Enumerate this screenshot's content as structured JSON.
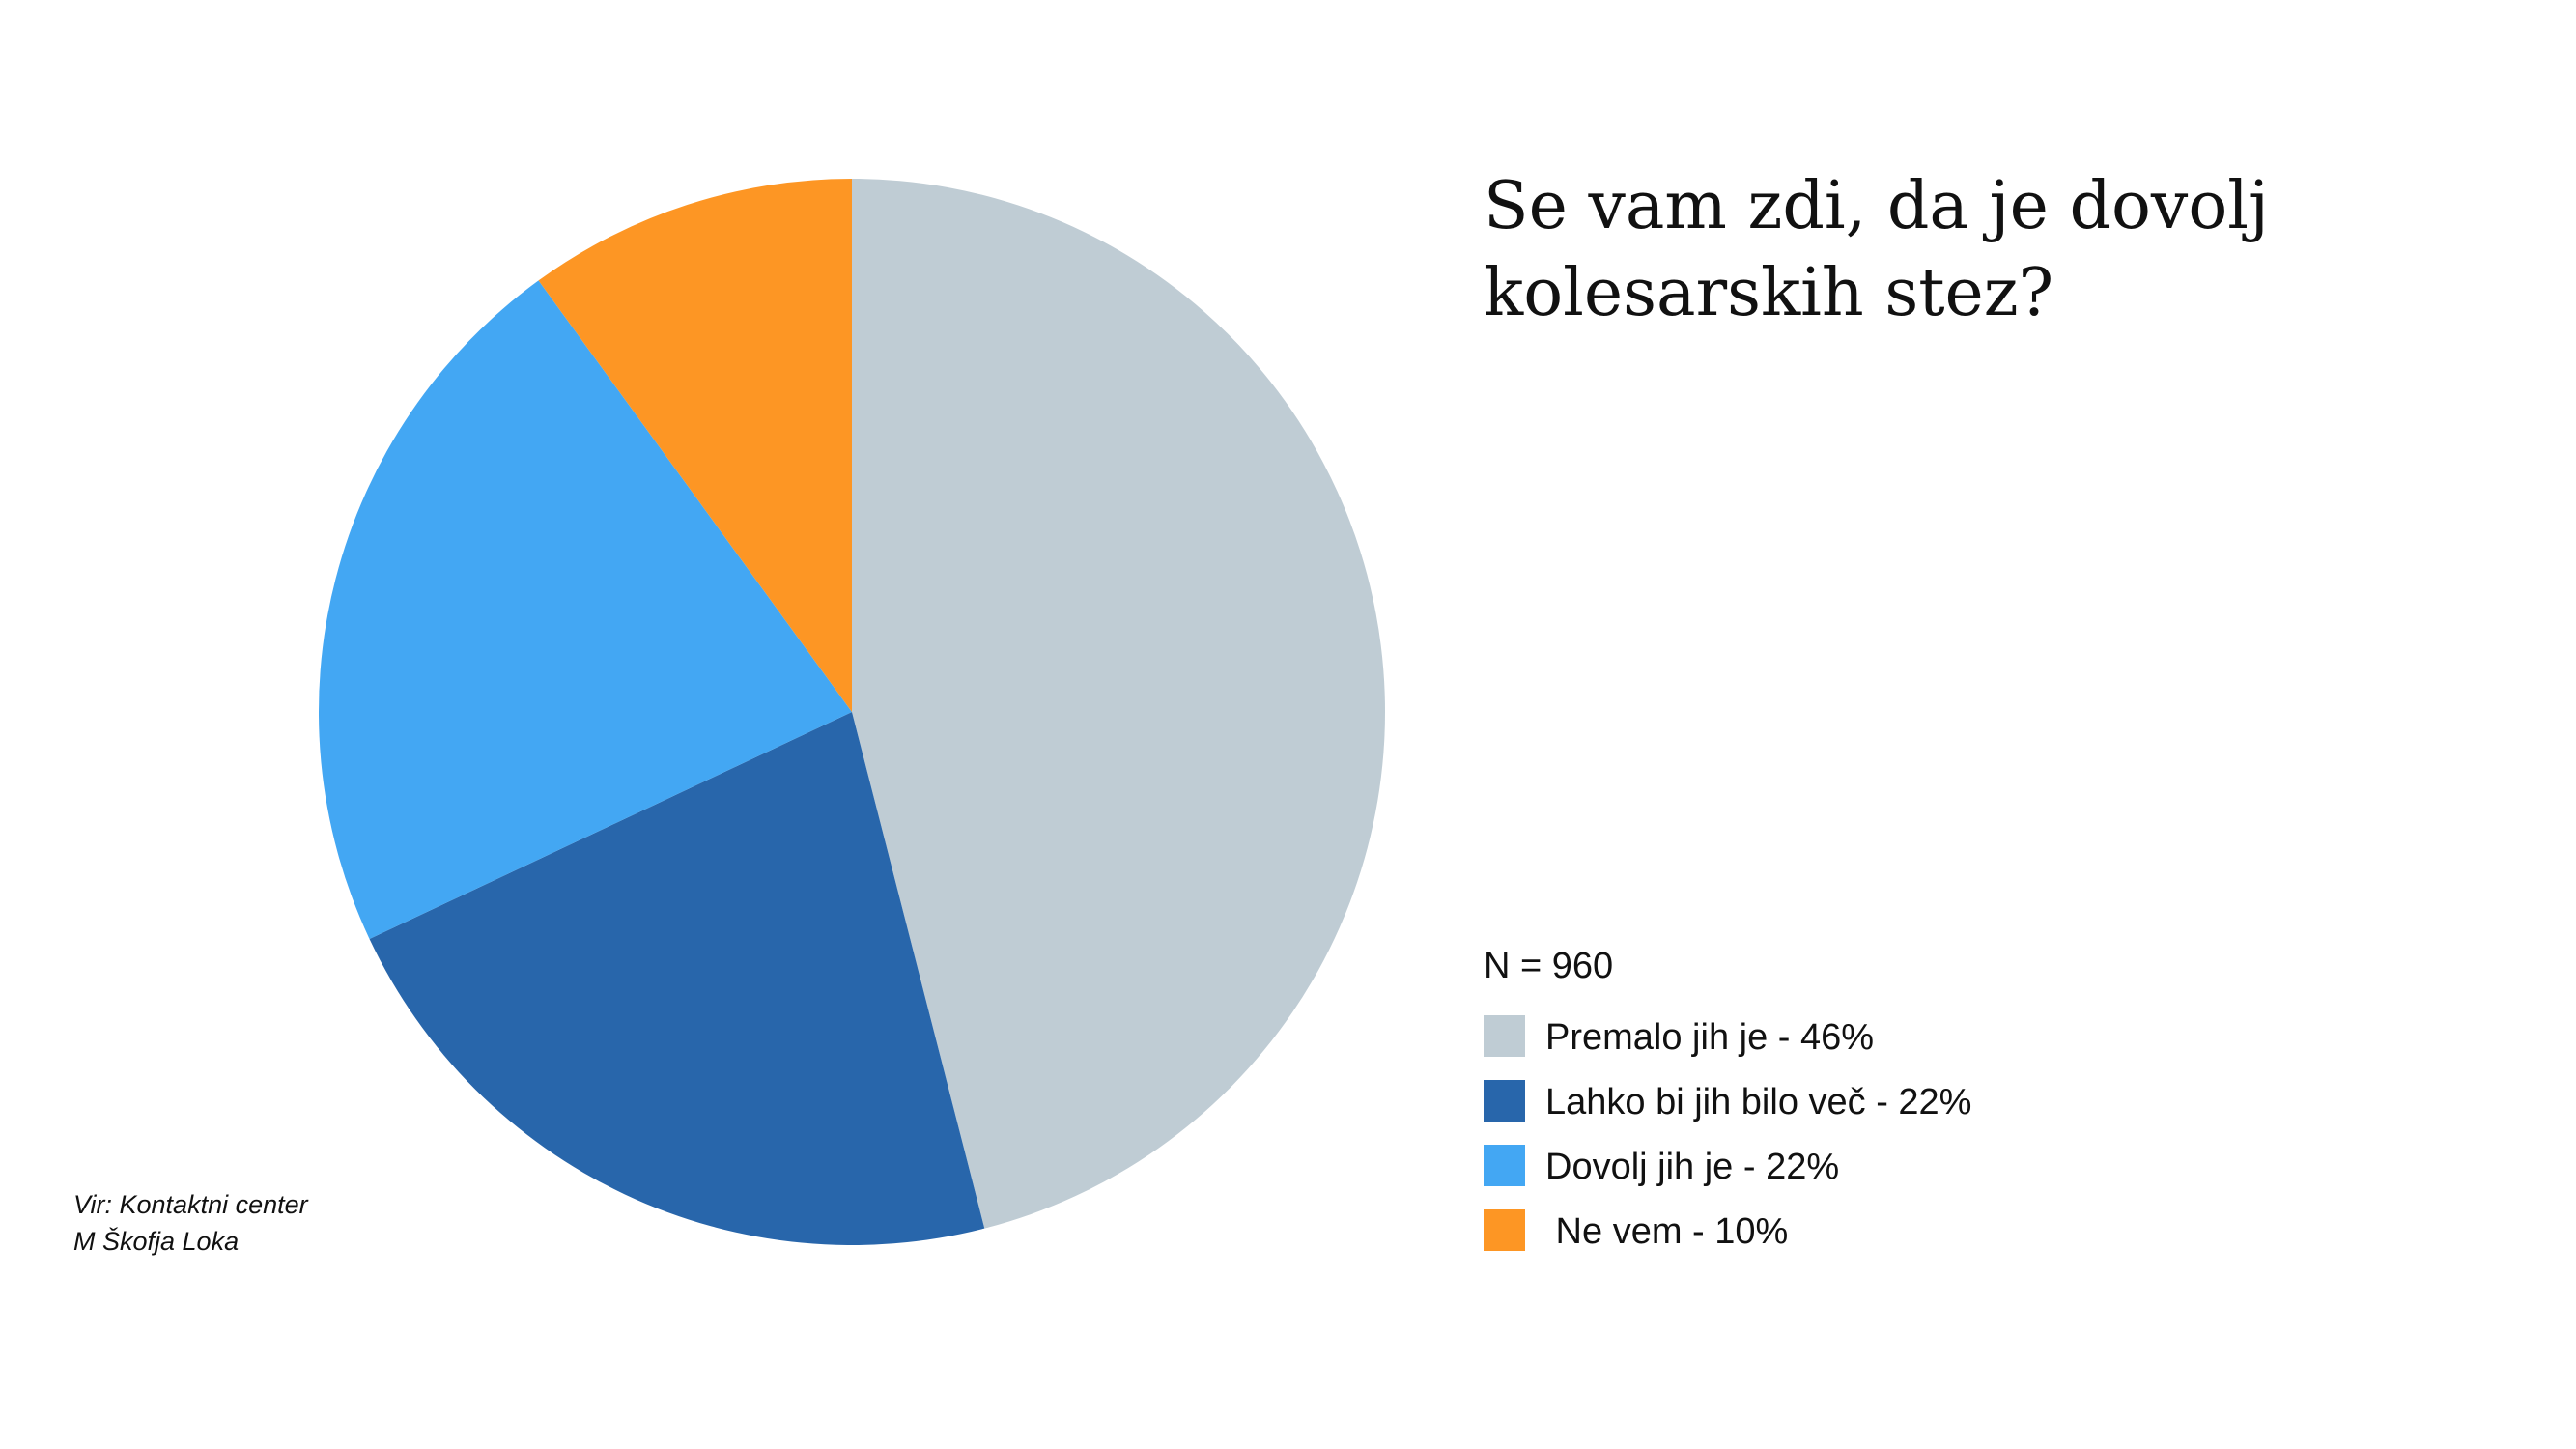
{
  "chart_data": {
    "type": "pie",
    "title": [
      "Se vam zdi, da je dovolj",
      "kolesarskih stez?"
    ],
    "note": "N = 960",
    "source": [
      "Vir: Kontaktni center",
      "M Škofja Loka"
    ],
    "categories": [
      "Premalo jih je - 46%",
      "Lahko bi jih bilo več - 22%",
      "Dovolj jih je - 22%",
      " Ne vem - 10%"
    ],
    "values": [
      46,
      22,
      22,
      10
    ],
    "colors": [
      "#bfccd4",
      "#2866ab",
      "#43a7f3",
      "#fd9624"
    ]
  }
}
